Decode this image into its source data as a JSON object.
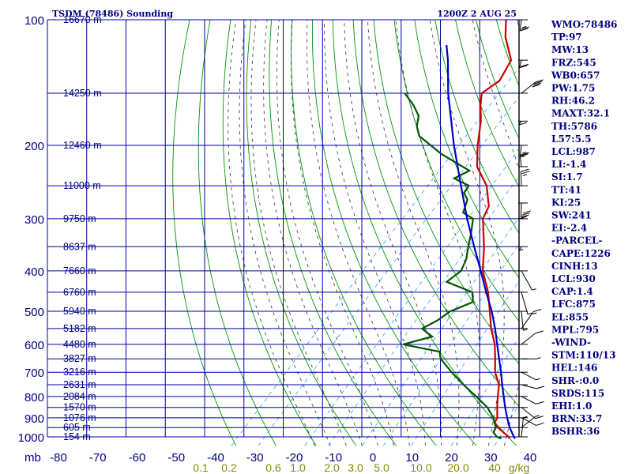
{
  "header": {
    "title": "TSDM (78486) Sounding",
    "datetime": "1200Z  2 AUG 25"
  },
  "colors": {
    "grid": "#0000a0",
    "axis_text": "#000080",
    "dry_adiabat": "#009900",
    "moist_adiabat": "#333333",
    "mixing_ratio": "#3399ff",
    "temperature": "#cc0000",
    "dewpoint": "#005500",
    "parcel": "#0000cc",
    "mixing_label": "#888800"
  },
  "chart_data": {
    "type": "line",
    "title": "TSDM (78486) Sounding",
    "xlabel": "",
    "ylabel": "mb",
    "y_scale": "log",
    "ylim": [
      1000,
      100
    ],
    "xlim": [
      -80,
      40
    ],
    "x_ticks": [
      "-80",
      "-70",
      "-60",
      "-50",
      "-40",
      "-30",
      "-20",
      "-10",
      "0",
      "10",
      "20",
      "30",
      "40"
    ],
    "pressure_ticks": [
      "100",
      "200",
      "300",
      "400",
      "500",
      "600",
      "700",
      "800",
      "900",
      "1000"
    ],
    "pressure_tick_values": [
      100,
      200,
      300,
      400,
      500,
      600,
      700,
      800,
      900,
      1000
    ],
    "height_labels": [
      {
        "p": 100,
        "label": "16670 m"
      },
      {
        "p": 150,
        "label": "14250 m"
      },
      {
        "p": 200,
        "label": "12460 m"
      },
      {
        "p": 250,
        "label": "11000 m"
      },
      {
        "p": 300,
        "label": "9750 m"
      },
      {
        "p": 350,
        "label": "8637 m"
      },
      {
        "p": 400,
        "label": "7660 m"
      },
      {
        "p": 450,
        "label": "6760 m"
      },
      {
        "p": 500,
        "label": "5940 m"
      },
      {
        "p": 550,
        "label": "5182 m"
      },
      {
        "p": 600,
        "label": "4480 m"
      },
      {
        "p": 650,
        "label": "3827 m"
      },
      {
        "p": 700,
        "label": "3216 m"
      },
      {
        "p": 750,
        "label": "2631 m"
      },
      {
        "p": 800,
        "label": "2084 m"
      },
      {
        "p": 850,
        "label": "1570 m"
      },
      {
        "p": 900,
        "label": "1076 m"
      },
      {
        "p": 950,
        "label": "605 m"
      },
      {
        "p": 1000,
        "label": "154 m"
      }
    ],
    "mixing_ratio_labels": [
      "0.1",
      "0.2",
      "0.6",
      "1.0",
      "2.0",
      "3.0",
      "5.0",
      "10.0",
      "20.0",
      "40",
      "g/kg"
    ],
    "mixing_ratio_values": [
      0.1,
      0.2,
      0.6,
      1.0,
      2.0,
      3.0,
      5.0,
      10.0,
      20.0,
      40
    ],
    "series": [
      {
        "role": "temperature",
        "points": [
          [
            1009,
            27.5
          ],
          [
            1000,
            27
          ],
          [
            975,
            24.5
          ],
          [
            950,
            22
          ],
          [
            925,
            20
          ],
          [
            900,
            19.5
          ],
          [
            850,
            17
          ],
          [
            800,
            14.5
          ],
          [
            750,
            12
          ],
          [
            700,
            8
          ],
          [
            650,
            4.8
          ],
          [
            600,
            1.2
          ],
          [
            550,
            -3.5
          ],
          [
            500,
            -8
          ],
          [
            450,
            -13
          ],
          [
            400,
            -19.5
          ],
          [
            350,
            -25
          ],
          [
            300,
            -32
          ],
          [
            280,
            -33.5
          ],
          [
            250,
            -39
          ],
          [
            225,
            -46
          ],
          [
            200,
            -51
          ],
          [
            175,
            -56
          ],
          [
            160,
            -60
          ],
          [
            150,
            -62.5
          ],
          [
            140,
            -61
          ],
          [
            125,
            -63
          ],
          [
            110,
            -70
          ],
          [
            100,
            -74
          ],
          [
            98,
            -74
          ]
        ]
      },
      {
        "role": "dewpoint",
        "points": [
          [
            1009,
            25.5
          ],
          [
            1000,
            24
          ],
          [
            975,
            22
          ],
          [
            950,
            21.5
          ],
          [
            925,
            20
          ],
          [
            900,
            18.5
          ],
          [
            850,
            14.5
          ],
          [
            800,
            9
          ],
          [
            750,
            3
          ],
          [
            700,
            -3
          ],
          [
            650,
            -9
          ],
          [
            625,
            -11
          ],
          [
            600,
            -22
          ],
          [
            575,
            -16.5
          ],
          [
            550,
            -21
          ],
          [
            525,
            -19
          ],
          [
            500,
            -18
          ],
          [
            475,
            -14.5
          ],
          [
            450,
            -17
          ],
          [
            425,
            -26
          ],
          [
            400,
            -25
          ],
          [
            375,
            -26.5
          ],
          [
            350,
            -29
          ],
          [
            325,
            -31.5
          ],
          [
            300,
            -34.5
          ],
          [
            290,
            -38.5
          ],
          [
            270,
            -40.5
          ],
          [
            260,
            -43
          ],
          [
            250,
            -43.5
          ],
          [
            240,
            -49
          ],
          [
            230,
            -47
          ],
          [
            210,
            -58
          ],
          [
            190,
            -68
          ],
          [
            180,
            -71
          ],
          [
            170,
            -73
          ],
          [
            160,
            -77
          ],
          [
            150,
            -82
          ]
        ]
      },
      {
        "role": "parcel",
        "points": [
          [
            1009,
            29
          ],
          [
            1000,
            28.3
          ],
          [
            950,
            25
          ],
          [
            900,
            22
          ],
          [
            850,
            19
          ],
          [
            800,
            16
          ],
          [
            750,
            12.8
          ],
          [
            700,
            9.5
          ],
          [
            650,
            5.8
          ],
          [
            600,
            1.8
          ],
          [
            550,
            -2.5
          ],
          [
            500,
            -7.5
          ],
          [
            450,
            -13.5
          ],
          [
            400,
            -20
          ],
          [
            350,
            -27.5
          ],
          [
            300,
            -36
          ],
          [
            250,
            -45.5
          ],
          [
            200,
            -57
          ],
          [
            150,
            -71
          ],
          [
            125,
            -79
          ],
          [
            115,
            -83
          ]
        ]
      }
    ],
    "wind_barbs": [
      {
        "p": 100,
        "dir": 240,
        "spd": 25
      },
      {
        "p": 125,
        "dir": 250,
        "spd": 20
      },
      {
        "p": 150,
        "dir": 60,
        "spd": 40
      },
      {
        "p": 175,
        "dir": 260,
        "spd": 10
      },
      {
        "p": 200,
        "dir": 240,
        "spd": 25
      },
      {
        "p": 225,
        "dir": 300,
        "spd": 15
      },
      {
        "p": 250,
        "dir": 310,
        "spd": 25
      },
      {
        "p": 275,
        "dir": 230,
        "spd": 30
      },
      {
        "p": 300,
        "dir": 270,
        "spd": 15
      },
      {
        "p": 350,
        "dir": 260,
        "spd": 5
      },
      {
        "p": 400,
        "dir": 150,
        "spd": 5
      },
      {
        "p": 450,
        "dir": 180,
        "spd": 5
      },
      {
        "p": 500,
        "dir": 210,
        "spd": 5
      },
      {
        "p": 550,
        "dir": 40,
        "spd": 15
      },
      {
        "p": 600,
        "dir": 60,
        "spd": 10
      },
      {
        "p": 650,
        "dir": 90,
        "spd": 5
      },
      {
        "p": 700,
        "dir": 110,
        "spd": 5
      },
      {
        "p": 750,
        "dir": 100,
        "spd": 10
      },
      {
        "p": 800,
        "dir": 110,
        "spd": 10
      },
      {
        "p": 850,
        "dir": 120,
        "spd": 10
      },
      {
        "p": 900,
        "dir": 110,
        "spd": 10
      },
      {
        "p": 950,
        "dir": 60,
        "spd": 5
      },
      {
        "p": 1000,
        "dir": 330,
        "spd": 5
      }
    ]
  },
  "indices": [
    "WMO:78486",
    "TP:97",
    "MW:13",
    "FRZ:545",
    "WB0:657",
    "PW:1.75",
    "RH:46.2",
    "MAXT:32.1",
    "TH:5786",
    "L57:5.5",
    "LCL:987",
    "LI:-1.4",
    "SI:1.7",
    "TT:41",
    "KI:25",
    "SW:241",
    "EI:-2.4",
    "-PARCEL-",
    "CAPE:1226",
    "CINH:13",
    "LCL:930",
    "CAP:1.4",
    "LFC:875",
    "EL:855",
    "MPL:795",
    "-WIND-",
    "STM:110/13",
    "HEL:146",
    "SHR-:0.0",
    "SRDS:115",
    "EHI:1.0",
    "BRN:33.7",
    "BSHR:36"
  ]
}
